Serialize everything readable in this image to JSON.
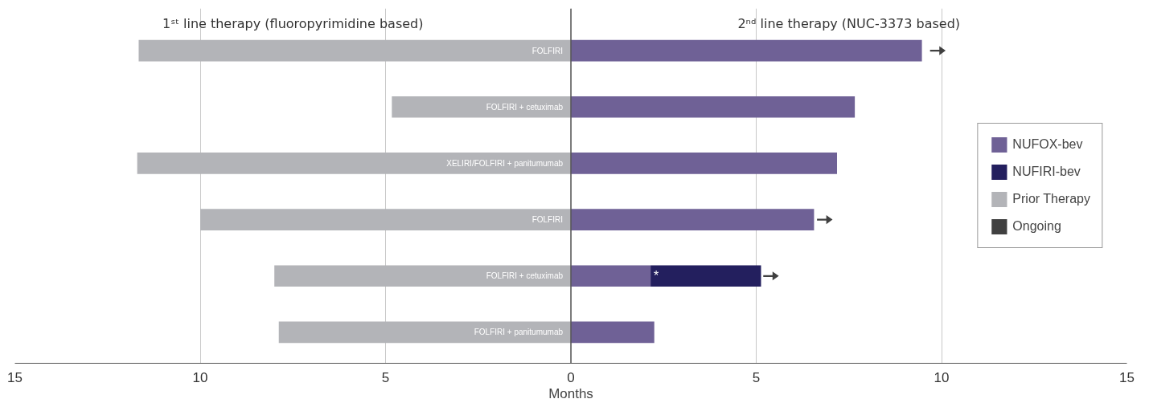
{
  "chart_data": {
    "type": "bar",
    "orientation": "horizontal",
    "stacked": true,
    "annotations": [
      "1ˢᵗ line therapy (fluoropyrimidine based)",
      "2ⁿᵈ line therapy (NUC-3373 based)"
    ],
    "xlabel": "Months",
    "categories": [
      null,
      null,
      null,
      null,
      null,
      null
    ],
    "series": [
      {
        "name": "NUFOX-bev",
        "color": "#6f6196",
        "values": [
          9.47,
          7.66,
          7.18,
          6.56,
          2.15,
          2.25
        ]
      },
      {
        "name": "NUFIRI-bev",
        "color": "#231f5e",
        "values": [
          null,
          null,
          null,
          null,
          2.98,
          null
        ],
        "value_labels": [
          null,
          null,
          null,
          null,
          "*",
          null
        ]
      },
      {
        "name": "Prior Therapy",
        "color": "#b3b4b8",
        "values": [
          -11.66,
          -4.83,
          -11.7,
          -10.0,
          -8.0,
          -7.88
        ],
        "value_labels": [
          "FOLFIRI",
          "FOLFIRI + cetuximab",
          "XELIRI/FOLFIRI + panitumumab",
          "FOLFIRI",
          "FOLFIRI + cetuximab",
          "FOLFIRI + panitumumab"
        ]
      },
      {
        "name": "Ongoing",
        "type": "scatter",
        "color": "#404040",
        "values": [
          9.9,
          null,
          null,
          6.85,
          5.4,
          null
        ]
      }
    ],
    "xlim": [
      -15,
      15
    ],
    "xticks": [
      {
        "value": -15,
        "label": "15"
      },
      {
        "value": -10,
        "label": "10"
      },
      {
        "value": -5,
        "label": "5"
      },
      0,
      5,
      10,
      15
    ],
    "ref_lines": [
      {
        "axis": "x",
        "value": 0,
        "color": "#555555"
      }
    ],
    "grid": "x",
    "legend": "right"
  }
}
